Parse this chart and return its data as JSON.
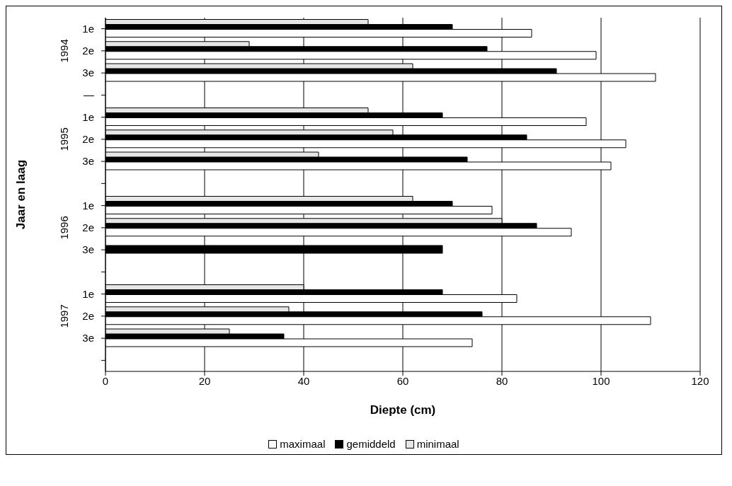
{
  "chart_data": {
    "type": "bar",
    "orientation": "horizontal",
    "xlabel": "Diepte (cm)",
    "ylabel": "Jaar en laag",
    "categories": [
      "1e",
      "2e",
      "3e",
      "—",
      "1e",
      "2e",
      "3e",
      null,
      "1e",
      "2e",
      "3e",
      null,
      "1e",
      "2e",
      "3e",
      null
    ],
    "annotations": [
      "1994",
      "1995",
      "1996",
      "1997"
    ],
    "series": [
      {
        "name": "maximaal",
        "color": "#ffffff",
        "values": [
          86,
          99,
          111,
          null,
          97,
          105,
          102,
          null,
          78,
          94,
          null,
          null,
          83,
          110,
          74,
          null
        ]
      },
      {
        "name": "gemiddeld",
        "color": "#000000",
        "values": [
          70,
          77,
          91,
          null,
          68,
          85,
          73,
          null,
          70,
          87,
          68,
          null,
          68,
          76,
          36,
          null
        ]
      },
      {
        "name": "minimaal",
        "color": "#e6e6e6",
        "values": [
          53,
          29,
          62,
          null,
          53,
          58,
          43,
          null,
          62,
          80,
          null,
          null,
          40,
          37,
          25,
          null
        ]
      }
    ],
    "xlim": [
      0,
      120
    ],
    "xticks": [
      0,
      20,
      40,
      60,
      80,
      100,
      120
    ],
    "grid": "x",
    "legend": "bottom"
  }
}
